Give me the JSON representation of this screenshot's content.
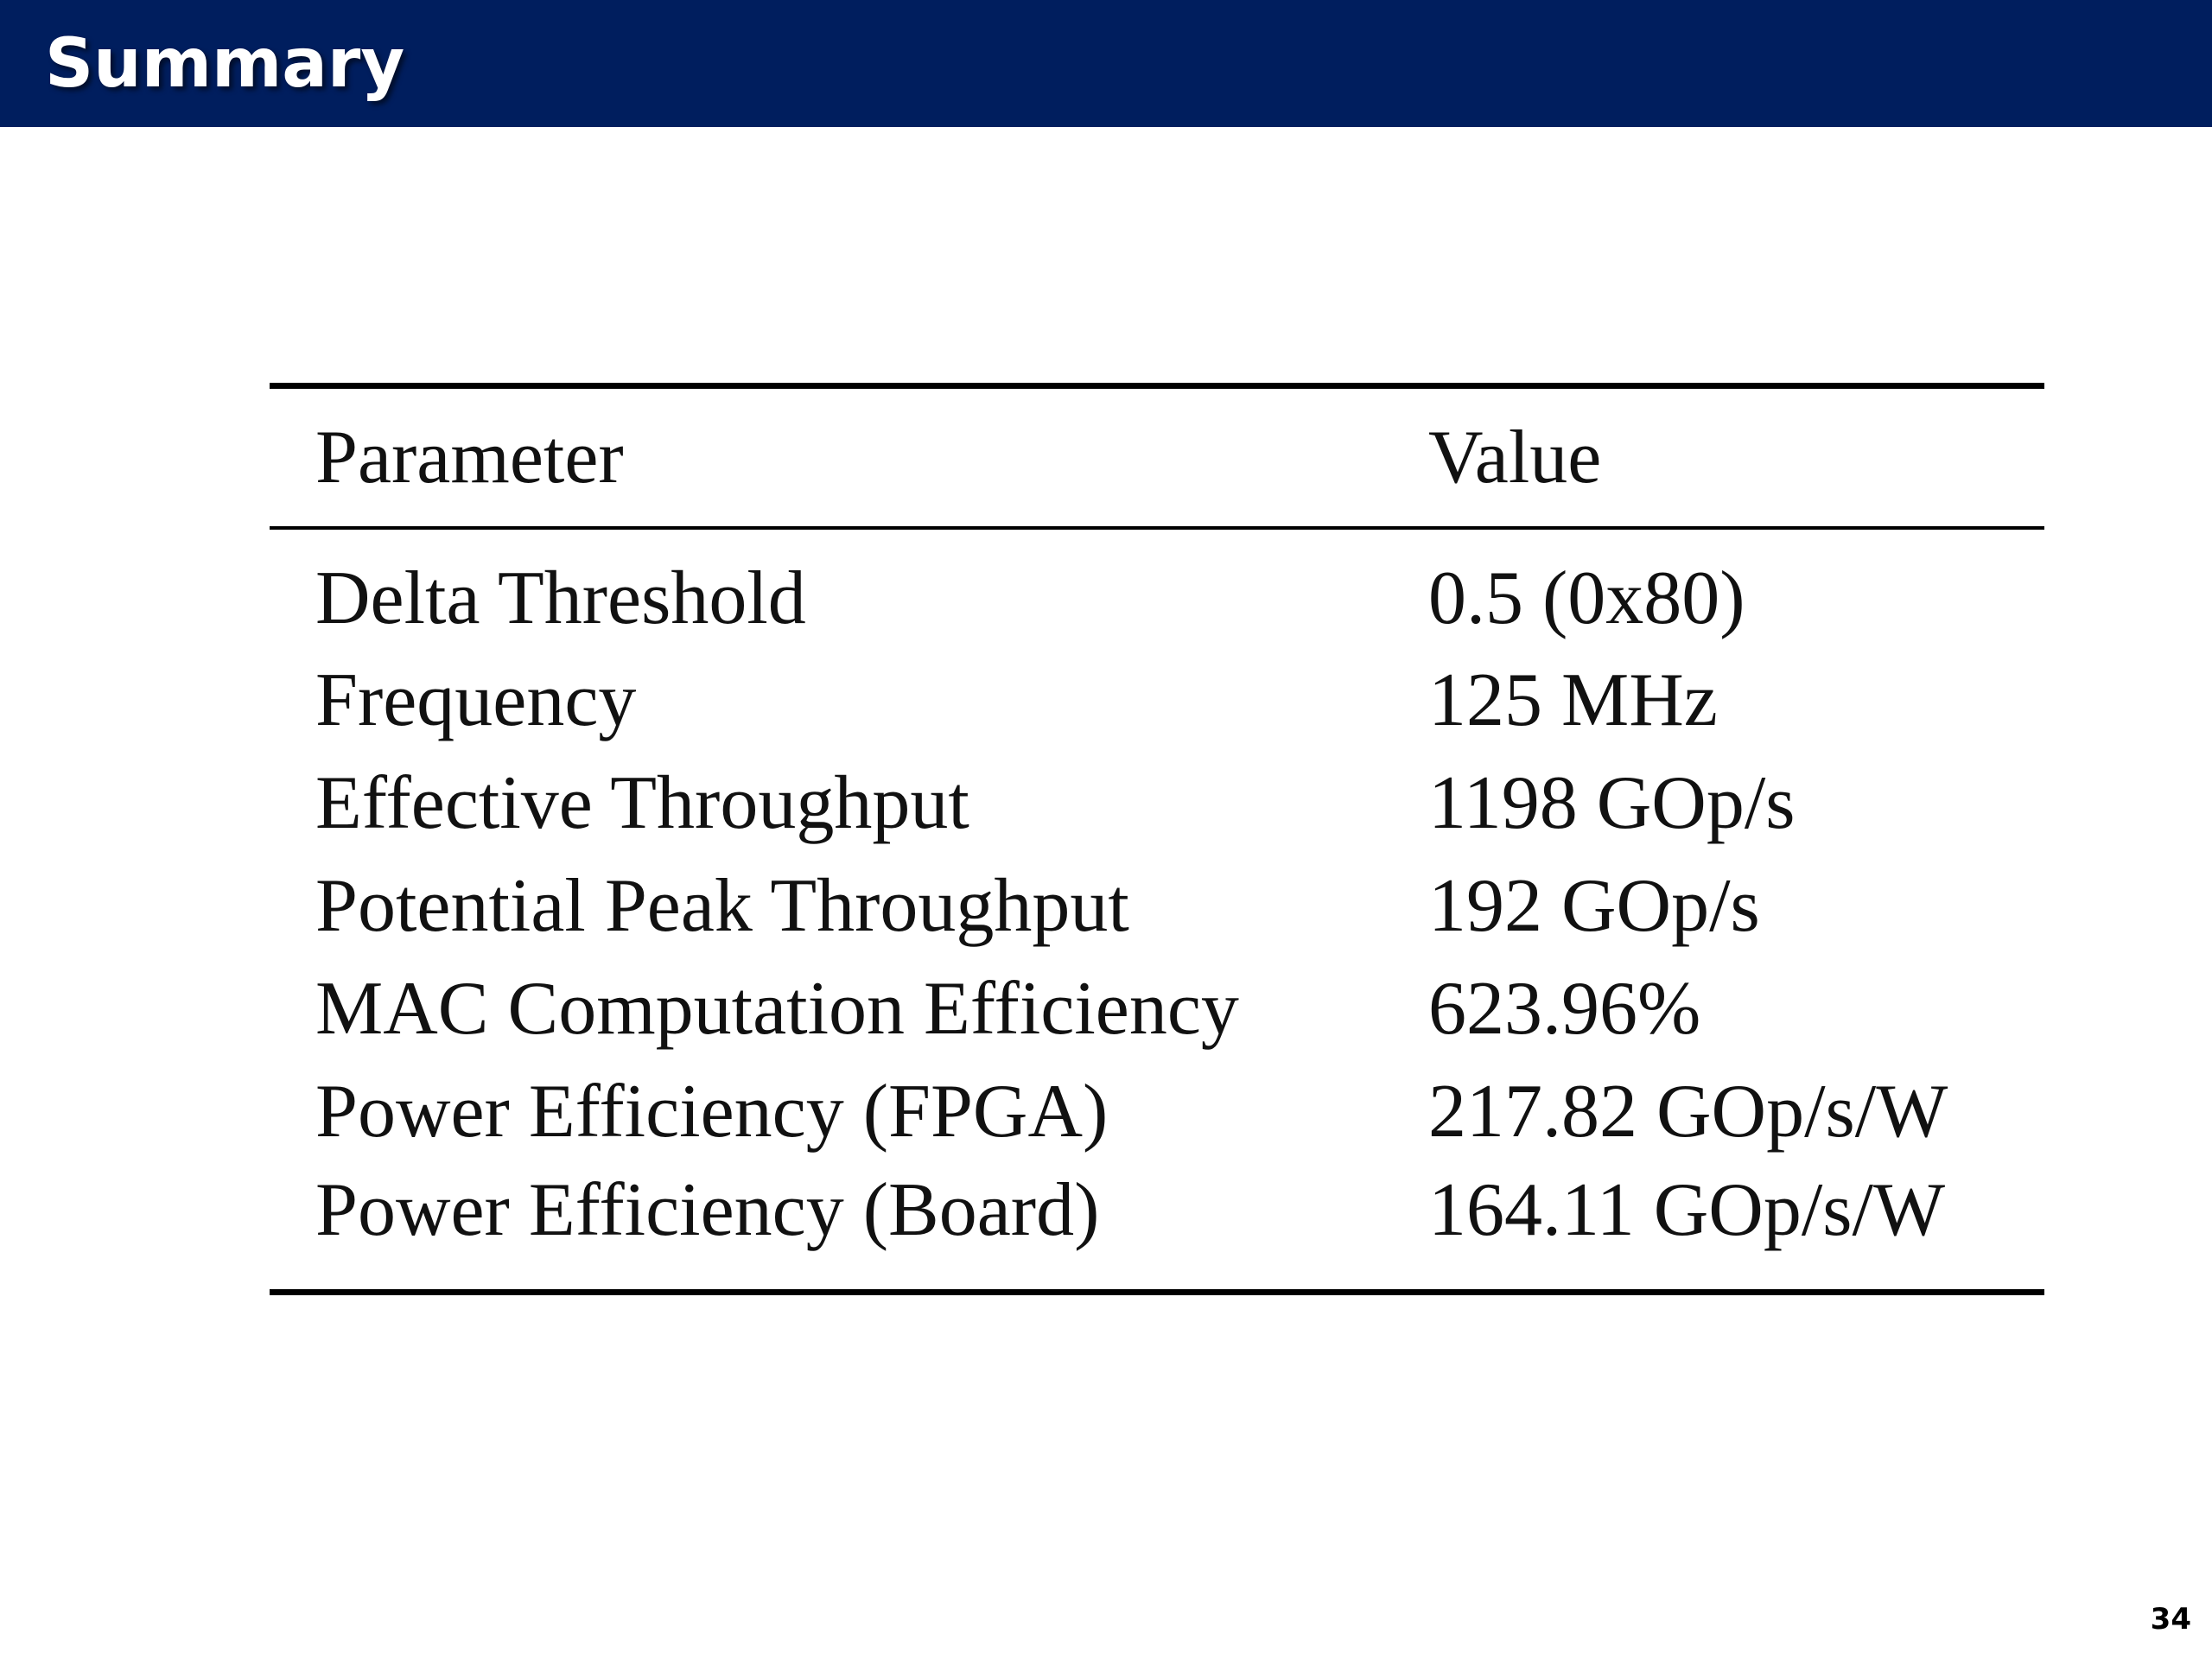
{
  "slide": {
    "title": "Summary",
    "page_number": "34"
  },
  "table": {
    "headers": {
      "parameter": "Parameter",
      "value": "Value"
    },
    "rows": [
      {
        "parameter": "Delta Threshold",
        "value": "0.5 (0x80)"
      },
      {
        "parameter": "Frequency",
        "value": "125 MHz"
      },
      {
        "parameter": "Effective Throughput",
        "value": "1198 GOp/s"
      },
      {
        "parameter": "Potential Peak Throughput",
        "value": "192 GOp/s"
      },
      {
        "parameter": "MAC Computation Efficiency",
        "value": "623.96%"
      },
      {
        "parameter": "Power Efficiency (FPGA)",
        "value": "217.82 GOp/s/W"
      },
      {
        "parameter": "Power Efficiency (Board)",
        "value": "164.11 GOp/s/W"
      }
    ]
  },
  "colors": {
    "header_bar": "#001e5e",
    "title_text": "#ffffff",
    "table_text": "#111111"
  }
}
